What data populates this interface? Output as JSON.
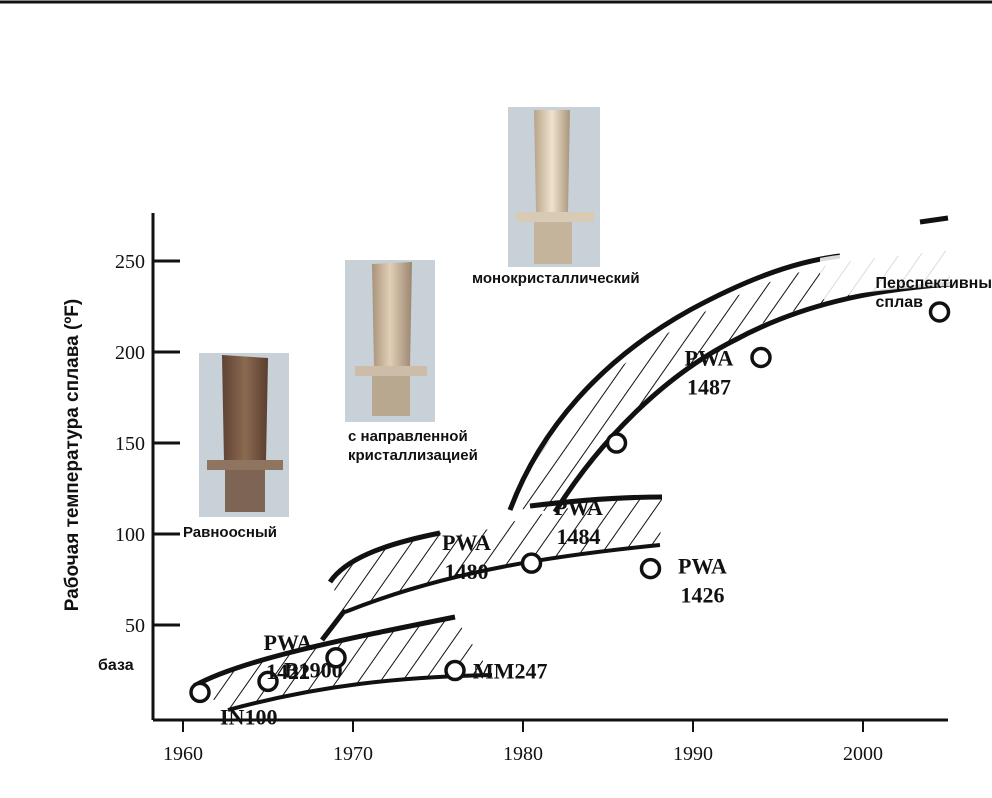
{
  "chart_data": {
    "type": "scatter",
    "title": "",
    "ylabel": "Рабочая температура сплава (ºF)",
    "xlabel": "",
    "xlim": [
      1958,
      2005
    ],
    "ylim": [
      0,
      250
    ],
    "x_ticks": [
      "1960",
      "1970",
      "1980",
      "1990",
      "2000"
    ],
    "y_ticks": [
      "50",
      "100",
      "150",
      "200",
      "250"
    ],
    "baseline_label": "база",
    "points": [
      {
        "label": "IN100",
        "x": 1961,
        "y": 13
      },
      {
        "label": "B1900",
        "x": 1965,
        "y": 19
      },
      {
        "label": "MM247",
        "x": 1976,
        "y": 25
      },
      {
        "label": "PWA 1422",
        "x": 1969,
        "y": 32
      },
      {
        "label": "PWA 1480",
        "x": 1980.5,
        "y": 84
      },
      {
        "label": "PWA 1426",
        "x": 1987.5,
        "y": 81
      },
      {
        "label": "PWA 1484",
        "x": 1985.5,
        "y": 150
      },
      {
        "label": "PWA 1487",
        "x": 1994,
        "y": 197
      },
      {
        "label": "Перспективный сплав",
        "x": 2004.5,
        "y": 222
      }
    ],
    "categories": [
      "Равноосный",
      "с направленной кристаллизацией",
      "монокристаллический"
    ]
  },
  "colors": {
    "ink": "#111111",
    "blade_equiaxed": "#7a5a44",
    "blade_ds": "#c8b49c",
    "blade_sx": "#d4c4aa",
    "photo_bg": "#c8d2dc"
  }
}
